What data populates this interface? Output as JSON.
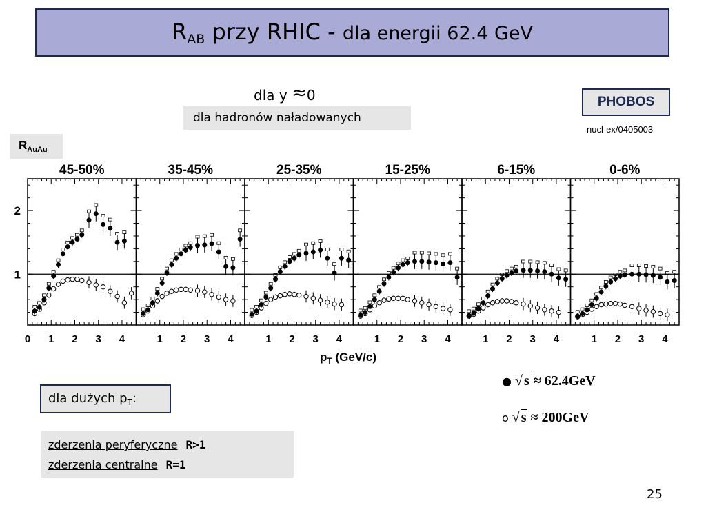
{
  "title": {
    "r": "R",
    "sub": "AB",
    "main": "przy RHIC  -",
    "tail": "dla  energii 62.4 GeV"
  },
  "condition": {
    "text": "dla y",
    "approx": "≈",
    "zero": "0"
  },
  "hadrons": "dla hadronów naładowanych",
  "experiment": "PHOBOS",
  "reference": "nucl-ex/0405003",
  "ylabel": {
    "r": "R",
    "sub": "AuAu"
  },
  "legend": [
    {
      "marker": "●",
      "sqrt": "s",
      "value": "≈ 62.4GeV"
    },
    {
      "marker": "o",
      "sqrt": "s",
      "value": "≈ 200GeV"
    }
  ],
  "high_pt": {
    "text": "dla dużych p",
    "sub": "T",
    "colon": ":"
  },
  "findings": [
    {
      "label": "zderzenia peryferyczne",
      "value": "R>1"
    },
    {
      "label": "zderzenia  centralne",
      "value": "R=1"
    }
  ],
  "page_number": "25",
  "chart_data": {
    "type": "scatter",
    "xlabel": "p",
    "xlabel_sub": "T",
    "xlabel_unit": "(GeV/c)",
    "ylim": [
      0.2,
      2.5
    ],
    "yticks": [
      "1",
      "2"
    ],
    "yticks_values": [
      1,
      2
    ],
    "reference_line": 1,
    "panels": [
      {
        "title": "45-50%",
        "xlim": [
          0,
          4.6
        ],
        "xticks": [
          "0",
          "1",
          "2",
          "3",
          "4"
        ],
        "series": [
          {
            "name": "√s ≈ 62.4GeV",
            "marker": "filled",
            "x": [
              0.3,
              0.5,
              0.7,
              0.9,
              1.1,
              1.3,
              1.5,
              1.7,
              1.9,
              2.1,
              2.3,
              2.6,
              2.9,
              3.2,
              3.5,
              3.8,
              4.1
            ],
            "y": [
              0.42,
              0.48,
              0.6,
              0.78,
              0.97,
              1.15,
              1.32,
              1.43,
              1.5,
              1.55,
              1.62,
              1.85,
              1.95,
              1.78,
              1.72,
              1.5,
              1.52
            ]
          },
          {
            "name": "√s ≈ 200GeV",
            "marker": "open",
            "x": [
              0.3,
              0.5,
              0.7,
              0.9,
              1.1,
              1.3,
              1.5,
              1.7,
              1.9,
              2.1,
              2.3,
              2.6,
              2.9,
              3.2,
              3.5,
              3.8,
              4.1,
              4.4
            ],
            "y": [
              0.38,
              0.45,
              0.55,
              0.67,
              0.77,
              0.84,
              0.89,
              0.91,
              0.92,
              0.92,
              0.9,
              0.87,
              0.83,
              0.8,
              0.73,
              0.65,
              0.55,
              0.7
            ]
          }
        ]
      },
      {
        "title": "35-45%",
        "xlim": [
          0,
          4.6
        ],
        "xticks": [
          "1",
          "2",
          "3",
          "4"
        ],
        "series": [
          {
            "name": "√s ≈ 62.4GeV",
            "marker": "filled",
            "x": [
              0.3,
              0.5,
              0.7,
              0.9,
              1.1,
              1.3,
              1.5,
              1.7,
              1.9,
              2.1,
              2.3,
              2.6,
              2.9,
              3.2,
              3.5,
              3.8,
              4.1,
              4.4
            ],
            "y": [
              0.38,
              0.44,
              0.55,
              0.7,
              0.86,
              1.02,
              1.15,
              1.25,
              1.32,
              1.38,
              1.42,
              1.45,
              1.46,
              1.48,
              1.35,
              1.12,
              1.1,
              1.55
            ]
          },
          {
            "name": "√s ≈ 200GeV",
            "marker": "open",
            "x": [
              0.3,
              0.5,
              0.7,
              0.9,
              1.1,
              1.3,
              1.5,
              1.7,
              1.9,
              2.1,
              2.3,
              2.6,
              2.9,
              3.2,
              3.5,
              3.8,
              4.1
            ],
            "y": [
              0.36,
              0.42,
              0.5,
              0.58,
              0.65,
              0.7,
              0.73,
              0.75,
              0.76,
              0.76,
              0.75,
              0.74,
              0.72,
              0.68,
              0.64,
              0.6,
              0.58
            ]
          }
        ]
      },
      {
        "title": "25-35%",
        "xlim": [
          0,
          4.6
        ],
        "xticks": [
          "1",
          "2",
          "3",
          "4"
        ],
        "series": [
          {
            "name": "√s ≈ 62.4GeV",
            "marker": "filled",
            "x": [
              0.3,
              0.5,
              0.7,
              0.9,
              1.1,
              1.3,
              1.5,
              1.7,
              1.9,
              2.1,
              2.3,
              2.6,
              2.9,
              3.2,
              3.5,
              3.8,
              4.1,
              4.4
            ],
            "y": [
              0.37,
              0.42,
              0.52,
              0.64,
              0.78,
              0.92,
              1.04,
              1.12,
              1.2,
              1.25,
              1.3,
              1.33,
              1.35,
              1.38,
              1.25,
              1.02,
              1.25,
              1.22
            ]
          },
          {
            "name": "√s ≈ 200GeV",
            "marker": "open",
            "x": [
              0.3,
              0.5,
              0.7,
              0.9,
              1.1,
              1.3,
              1.5,
              1.7,
              1.9,
              2.1,
              2.3,
              2.6,
              2.9,
              3.2,
              3.5,
              3.8,
              4.1
            ],
            "y": [
              0.35,
              0.4,
              0.47,
              0.54,
              0.6,
              0.64,
              0.66,
              0.68,
              0.69,
              0.68,
              0.67,
              0.65,
              0.62,
              0.59,
              0.56,
              0.53,
              0.52
            ]
          }
        ]
      },
      {
        "title": "15-25%",
        "xlim": [
          0,
          4.6
        ],
        "xticks": [
          "1",
          "2",
          "3",
          "4"
        ],
        "series": [
          {
            "name": "√s ≈ 62.4GeV",
            "marker": "filled",
            "x": [
              0.3,
              0.5,
              0.7,
              0.9,
              1.1,
              1.3,
              1.5,
              1.7,
              1.9,
              2.1,
              2.3,
              2.6,
              2.9,
              3.2,
              3.5,
              3.8,
              4.1,
              4.4
            ],
            "y": [
              0.36,
              0.4,
              0.49,
              0.6,
              0.73,
              0.85,
              0.95,
              1.03,
              1.1,
              1.15,
              1.18,
              1.2,
              1.2,
              1.19,
              1.18,
              1.16,
              1.18,
              0.95
            ]
          },
          {
            "name": "√s ≈ 200GeV",
            "marker": "open",
            "x": [
              0.3,
              0.5,
              0.7,
              0.9,
              1.1,
              1.3,
              1.5,
              1.7,
              1.9,
              2.1,
              2.3,
              2.6,
              2.9,
              3.2,
              3.5,
              3.8,
              4.1
            ],
            "y": [
              0.34,
              0.38,
              0.44,
              0.5,
              0.55,
              0.59,
              0.61,
              0.62,
              0.62,
              0.62,
              0.6,
              0.58,
              0.55,
              0.52,
              0.49,
              0.46,
              0.44
            ]
          }
        ]
      },
      {
        "title": "6-15%",
        "xlim": [
          0,
          4.6
        ],
        "xticks": [
          "1",
          "2",
          "3",
          "4"
        ],
        "series": [
          {
            "name": "√s ≈ 62.4GeV",
            "marker": "filled",
            "x": [
              0.3,
              0.5,
              0.7,
              0.9,
              1.1,
              1.3,
              1.5,
              1.7,
              1.9,
              2.1,
              2.3,
              2.6,
              2.9,
              3.2,
              3.5,
              3.8,
              4.1,
              4.4
            ],
            "y": [
              0.35,
              0.39,
              0.46,
              0.55,
              0.66,
              0.77,
              0.86,
              0.93,
              0.98,
              1.02,
              1.05,
              1.06,
              1.06,
              1.05,
              1.04,
              1.0,
              0.94,
              0.92
            ]
          },
          {
            "name": "√s ≈ 200GeV",
            "marker": "open",
            "x": [
              0.3,
              0.5,
              0.7,
              0.9,
              1.1,
              1.3,
              1.5,
              1.7,
              1.9,
              2.1,
              2.3,
              2.6,
              2.9,
              3.2,
              3.5,
              3.8,
              4.1
            ],
            "y": [
              0.34,
              0.37,
              0.42,
              0.47,
              0.52,
              0.55,
              0.57,
              0.58,
              0.58,
              0.57,
              0.55,
              0.53,
              0.5,
              0.47,
              0.44,
              0.42,
              0.4
            ]
          }
        ]
      },
      {
        "title": "0-6%",
        "xlim": [
          0,
          4.6
        ],
        "xticks": [
          "1",
          "2",
          "3",
          "4"
        ],
        "series": [
          {
            "name": "√s ≈ 62.4GeV",
            "marker": "filled",
            "x": [
              0.3,
              0.5,
              0.7,
              0.9,
              1.1,
              1.3,
              1.5,
              1.7,
              1.9,
              2.1,
              2.3,
              2.6,
              2.9,
              3.2,
              3.5,
              3.8,
              4.1,
              4.4
            ],
            "y": [
              0.34,
              0.38,
              0.44,
              0.52,
              0.62,
              0.72,
              0.81,
              0.88,
              0.93,
              0.97,
              0.99,
              1.0,
              1.0,
              0.99,
              0.98,
              0.95,
              0.88,
              0.9
            ]
          },
          {
            "name": "√s ≈ 200GeV",
            "marker": "open",
            "x": [
              0.3,
              0.5,
              0.7,
              0.9,
              1.1,
              1.3,
              1.5,
              1.7,
              1.9,
              2.1,
              2.3,
              2.6,
              2.9,
              3.2,
              3.5,
              3.8,
              4.1
            ],
            "y": [
              0.33,
              0.36,
              0.4,
              0.45,
              0.49,
              0.52,
              0.53,
              0.54,
              0.54,
              0.53,
              0.51,
              0.49,
              0.46,
              0.43,
              0.41,
              0.38,
              0.36
            ]
          }
        ]
      }
    ]
  }
}
